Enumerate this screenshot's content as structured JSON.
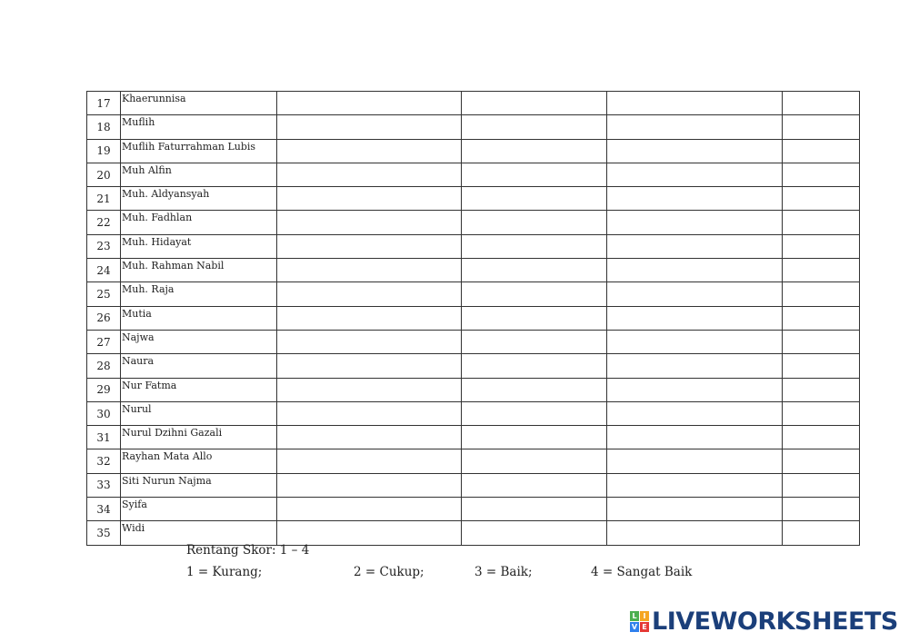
{
  "students": [
    {
      "no": "17",
      "name": "Khaerunnisa"
    },
    {
      "no": "18",
      "name": "Muflih"
    },
    {
      "no": "19",
      "name": "Muflih Faturrahman Lubis"
    },
    {
      "no": "20",
      "name": "Muh Alfin"
    },
    {
      "no": "21",
      "name": "Muh. Aldyansyah"
    },
    {
      "no": "22",
      "name": "Muh. Fadhlan"
    },
    {
      "no": "23",
      "name": "Muh. Hidayat"
    },
    {
      "no": "24",
      "name": "Muh. Rahman Nabil"
    },
    {
      "no": "25",
      "name": "Muh. Raja"
    },
    {
      "no": "26",
      "name": "Mutia"
    },
    {
      "no": "27",
      "name": "Najwa"
    },
    {
      "no": "28",
      "name": "Naura"
    },
    {
      "no": "29",
      "name": "Nur Fatma"
    },
    {
      "no": "30",
      "name": "Nurul"
    },
    {
      "no": "31",
      "name": "Nurul Dzihni Gazali"
    },
    {
      "no": "32",
      "name": "Rayhan Mata Allo"
    },
    {
      "no": "33",
      "name": "Siti Nurun Najma"
    },
    {
      "no": "34",
      "name": "Syifa"
    },
    {
      "no": "35",
      "name": "Widi"
    }
  ],
  "legend": {
    "range": "Rentang Skor: 1 – 4",
    "s1": "1 = Kurang;",
    "s2": "2 = Cukup;",
    "s3": "3 = Baik;",
    "s4": "4 = Sangat Baik"
  },
  "logo": {
    "text": "LIVEWORKSHEETS",
    "cube_letters": [
      "L",
      "I",
      "V",
      "E"
    ],
    "colors": [
      "#4caf50",
      "#f5a623",
      "#2f80ed",
      "#e53935"
    ],
    "brand_color": "#1b3f7a"
  }
}
